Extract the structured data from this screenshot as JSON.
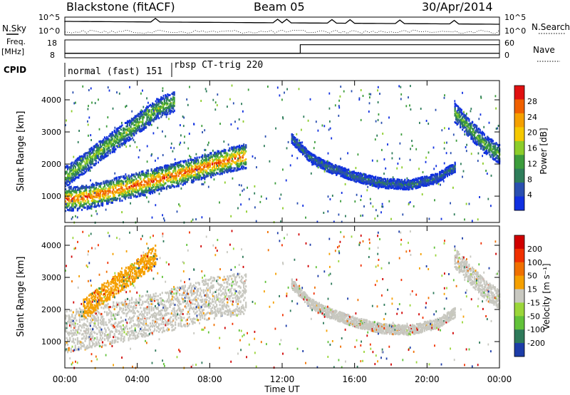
{
  "header": {
    "station": "Blackstone (fitACF)",
    "beam": "Beam 05",
    "date": "30/Apr/2014"
  },
  "left_labels": {
    "nsky": "N.Sky",
    "freq": "Freq.",
    "freq_unit": "[MHz]",
    "cpid": "CPID"
  },
  "right_labels": {
    "nsearch": "N.Search",
    "nave": "Nave"
  },
  "top_panel": {
    "nsky_ticks": [
      "10^5",
      "10^0"
    ],
    "nsearch_ticks": [
      "10^5",
      "10^0"
    ],
    "freq_ticks": [
      "18",
      "8"
    ],
    "nave_ticks": [
      "60",
      "0"
    ],
    "freq_mhz": 10.5,
    "nave_step": {
      "before": 15,
      "after": 44,
      "time": 13.0
    },
    "cpid": [
      {
        "label": "normal (fast) 151",
        "start": 0.0,
        "end": 6.1
      },
      {
        "label": "rbsp CT-trig 220",
        "start": 6.1,
        "end": 24.0
      }
    ]
  },
  "chart_data": [
    {
      "type": "heatmap",
      "title": "Power",
      "xlabel": "Time UT",
      "ylabel": "Slant Range [km]",
      "xlim": [
        0,
        24
      ],
      "ylim": [
        180,
        4600
      ],
      "x_tick_labels": [
        "00:00",
        "04:00",
        "08:00",
        "12:00",
        "16:00",
        "20:00",
        "00:00"
      ],
      "y_tick_labels": [
        "1000",
        "2000",
        "3000",
        "4000"
      ],
      "colorbar": {
        "label": "Power [dB]",
        "ticks": [
          "4",
          "8",
          "12",
          "16",
          "20",
          "24",
          "28"
        ],
        "colors": [
          "#1030e0",
          "#2a4fb0",
          "#2e7d5a",
          "#3c9c3c",
          "#8ccd2a",
          "#f5c800",
          "#f5a000",
          "#f06000",
          "#e01010"
        ]
      },
      "bands": [
        {
          "name": "lower band",
          "pts": [
            [
              0.0,
              900
            ],
            [
              1.0,
              950
            ],
            [
              2.0,
              1080
            ],
            [
              3.0,
              1220
            ],
            [
              4.0,
              1360
            ],
            [
              5.0,
              1500
            ],
            [
              6.0,
              1650
            ],
            [
              7.0,
              1800
            ],
            [
              8.0,
              1960
            ],
            [
              9.0,
              2120
            ],
            [
              10.0,
              2250
            ]
          ],
          "thick": 380,
          "peak": 28
        },
        {
          "name": "upper band",
          "pts": [
            [
              0.0,
              1600
            ],
            [
              1.0,
              2000
            ],
            [
              2.0,
              2450
            ],
            [
              3.0,
              2850
            ],
            [
              4.0,
              3250
            ],
            [
              5.0,
              3700
            ],
            [
              6.0,
              3950
            ]
          ],
          "thick": 320,
          "peak": 16
        },
        {
          "name": "arc",
          "pts": [
            [
              12.5,
              2800
            ],
            [
              13.5,
              2200
            ],
            [
              14.5,
              1900
            ],
            [
              16.0,
              1600
            ],
            [
              17.5,
              1400
            ],
            [
              19.0,
              1350
            ],
            [
              20.5,
              1550
            ],
            [
              21.5,
              1900
            ]
          ],
          "thick": 150,
          "peak": 8
        },
        {
          "name": "dusk band",
          "pts": [
            [
              21.5,
              3600
            ],
            [
              22.5,
              3000
            ],
            [
              23.2,
              2600
            ],
            [
              24.0,
              2300
            ]
          ],
          "thick": 300,
          "peak": 14
        }
      ]
    },
    {
      "type": "heatmap",
      "title": "Velocity",
      "xlabel": "Time UT",
      "ylabel": "Slant Range [km]",
      "xlim": [
        0,
        24
      ],
      "ylim": [
        180,
        4600
      ],
      "x_tick_labels": [
        "00:00",
        "04:00",
        "08:00",
        "12:00",
        "16:00",
        "20:00",
        "00:00"
      ],
      "y_tick_labels": [
        "1000",
        "2000",
        "3000",
        "4000"
      ],
      "colorbar": {
        "label": "Velocity [m s⁻¹]",
        "ticks": [
          "200",
          "100",
          "50",
          "15",
          "-15",
          "-50",
          "-100",
          "-200"
        ],
        "colors": [
          "#1c3ca8",
          "#2e7a5a",
          "#62c23a",
          "#9bd63a",
          "#c8c8c0",
          "#f5a000",
          "#f07000",
          "#f03000",
          "#d00000"
        ]
      },
      "bands": [
        {
          "name": "ground scatter",
          "pts": [
            [
              0.0,
              1300
            ],
            [
              2.0,
              1500
            ],
            [
              4.0,
              1750
            ],
            [
              6.0,
              2000
            ],
            [
              8.0,
              2350
            ],
            [
              10.0,
              2500
            ]
          ],
          "thick": 650,
          "color": "#c8c8c0"
        },
        {
          "name": "upper band",
          "pts": [
            [
              1.0,
              2000
            ],
            [
              2.0,
              2450
            ],
            [
              3.0,
              2850
            ],
            [
              4.0,
              3250
            ],
            [
              5.0,
              3700
            ]
          ],
          "thick": 320,
          "color": "#f5a000"
        },
        {
          "name": "arc",
          "pts": [
            [
              12.5,
              2800
            ],
            [
              13.5,
              2200
            ],
            [
              14.5,
              1900
            ],
            [
              16.0,
              1600
            ],
            [
              17.5,
              1400
            ],
            [
              19.0,
              1350
            ],
            [
              20.5,
              1550
            ],
            [
              21.5,
              1900
            ]
          ],
          "thick": 150,
          "color": "#c8c8c0"
        },
        {
          "name": "dusk band",
          "pts": [
            [
              21.5,
              3600
            ],
            [
              22.5,
              3000
            ],
            [
              23.2,
              2600
            ],
            [
              24.0,
              2300
            ]
          ],
          "thick": 300,
          "color": "#c8c8c0"
        }
      ]
    }
  ]
}
